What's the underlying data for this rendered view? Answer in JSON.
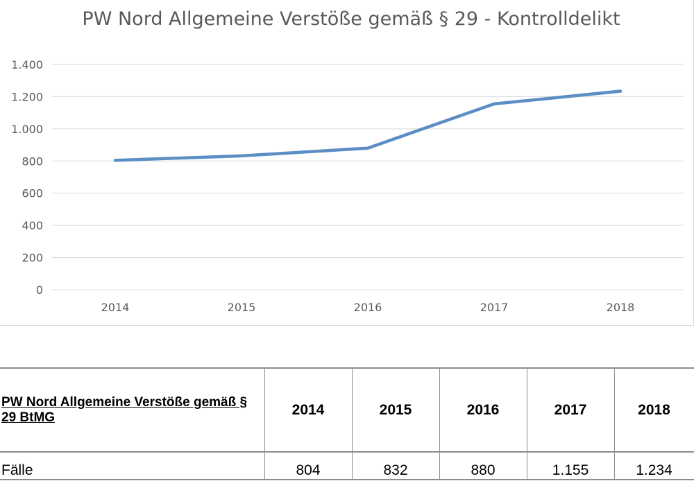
{
  "chart_data": {
    "type": "line",
    "title": "PW Nord Allgemeine Verstöße gemäß § 29 - Kontrolldelikt",
    "categories": [
      "2014",
      "2015",
      "2016",
      "2017",
      "2018"
    ],
    "series": [
      {
        "values": [
          804,
          832,
          880,
          1155,
          1234
        ],
        "color": "#5b8ec4"
      }
    ],
    "ylim": [
      0,
      1400
    ],
    "yticks": [
      0,
      200,
      400,
      600,
      800,
      1000,
      1200,
      1400
    ],
    "ytick_labels": [
      "0",
      "200",
      "400",
      "600",
      "800",
      "1.000",
      "1.200",
      "1.400"
    ],
    "grid": true,
    "gridline_color": "#d9d9d9"
  },
  "table": {
    "header_label": "PW Nord Allgemeine Verstöße gemäß § 29 BtMG",
    "years": [
      "2014",
      "2015",
      "2016",
      "2017",
      "2018"
    ],
    "row_label": "Fälle",
    "values": [
      "804",
      "832",
      "880",
      "1.155",
      "1.234"
    ]
  }
}
